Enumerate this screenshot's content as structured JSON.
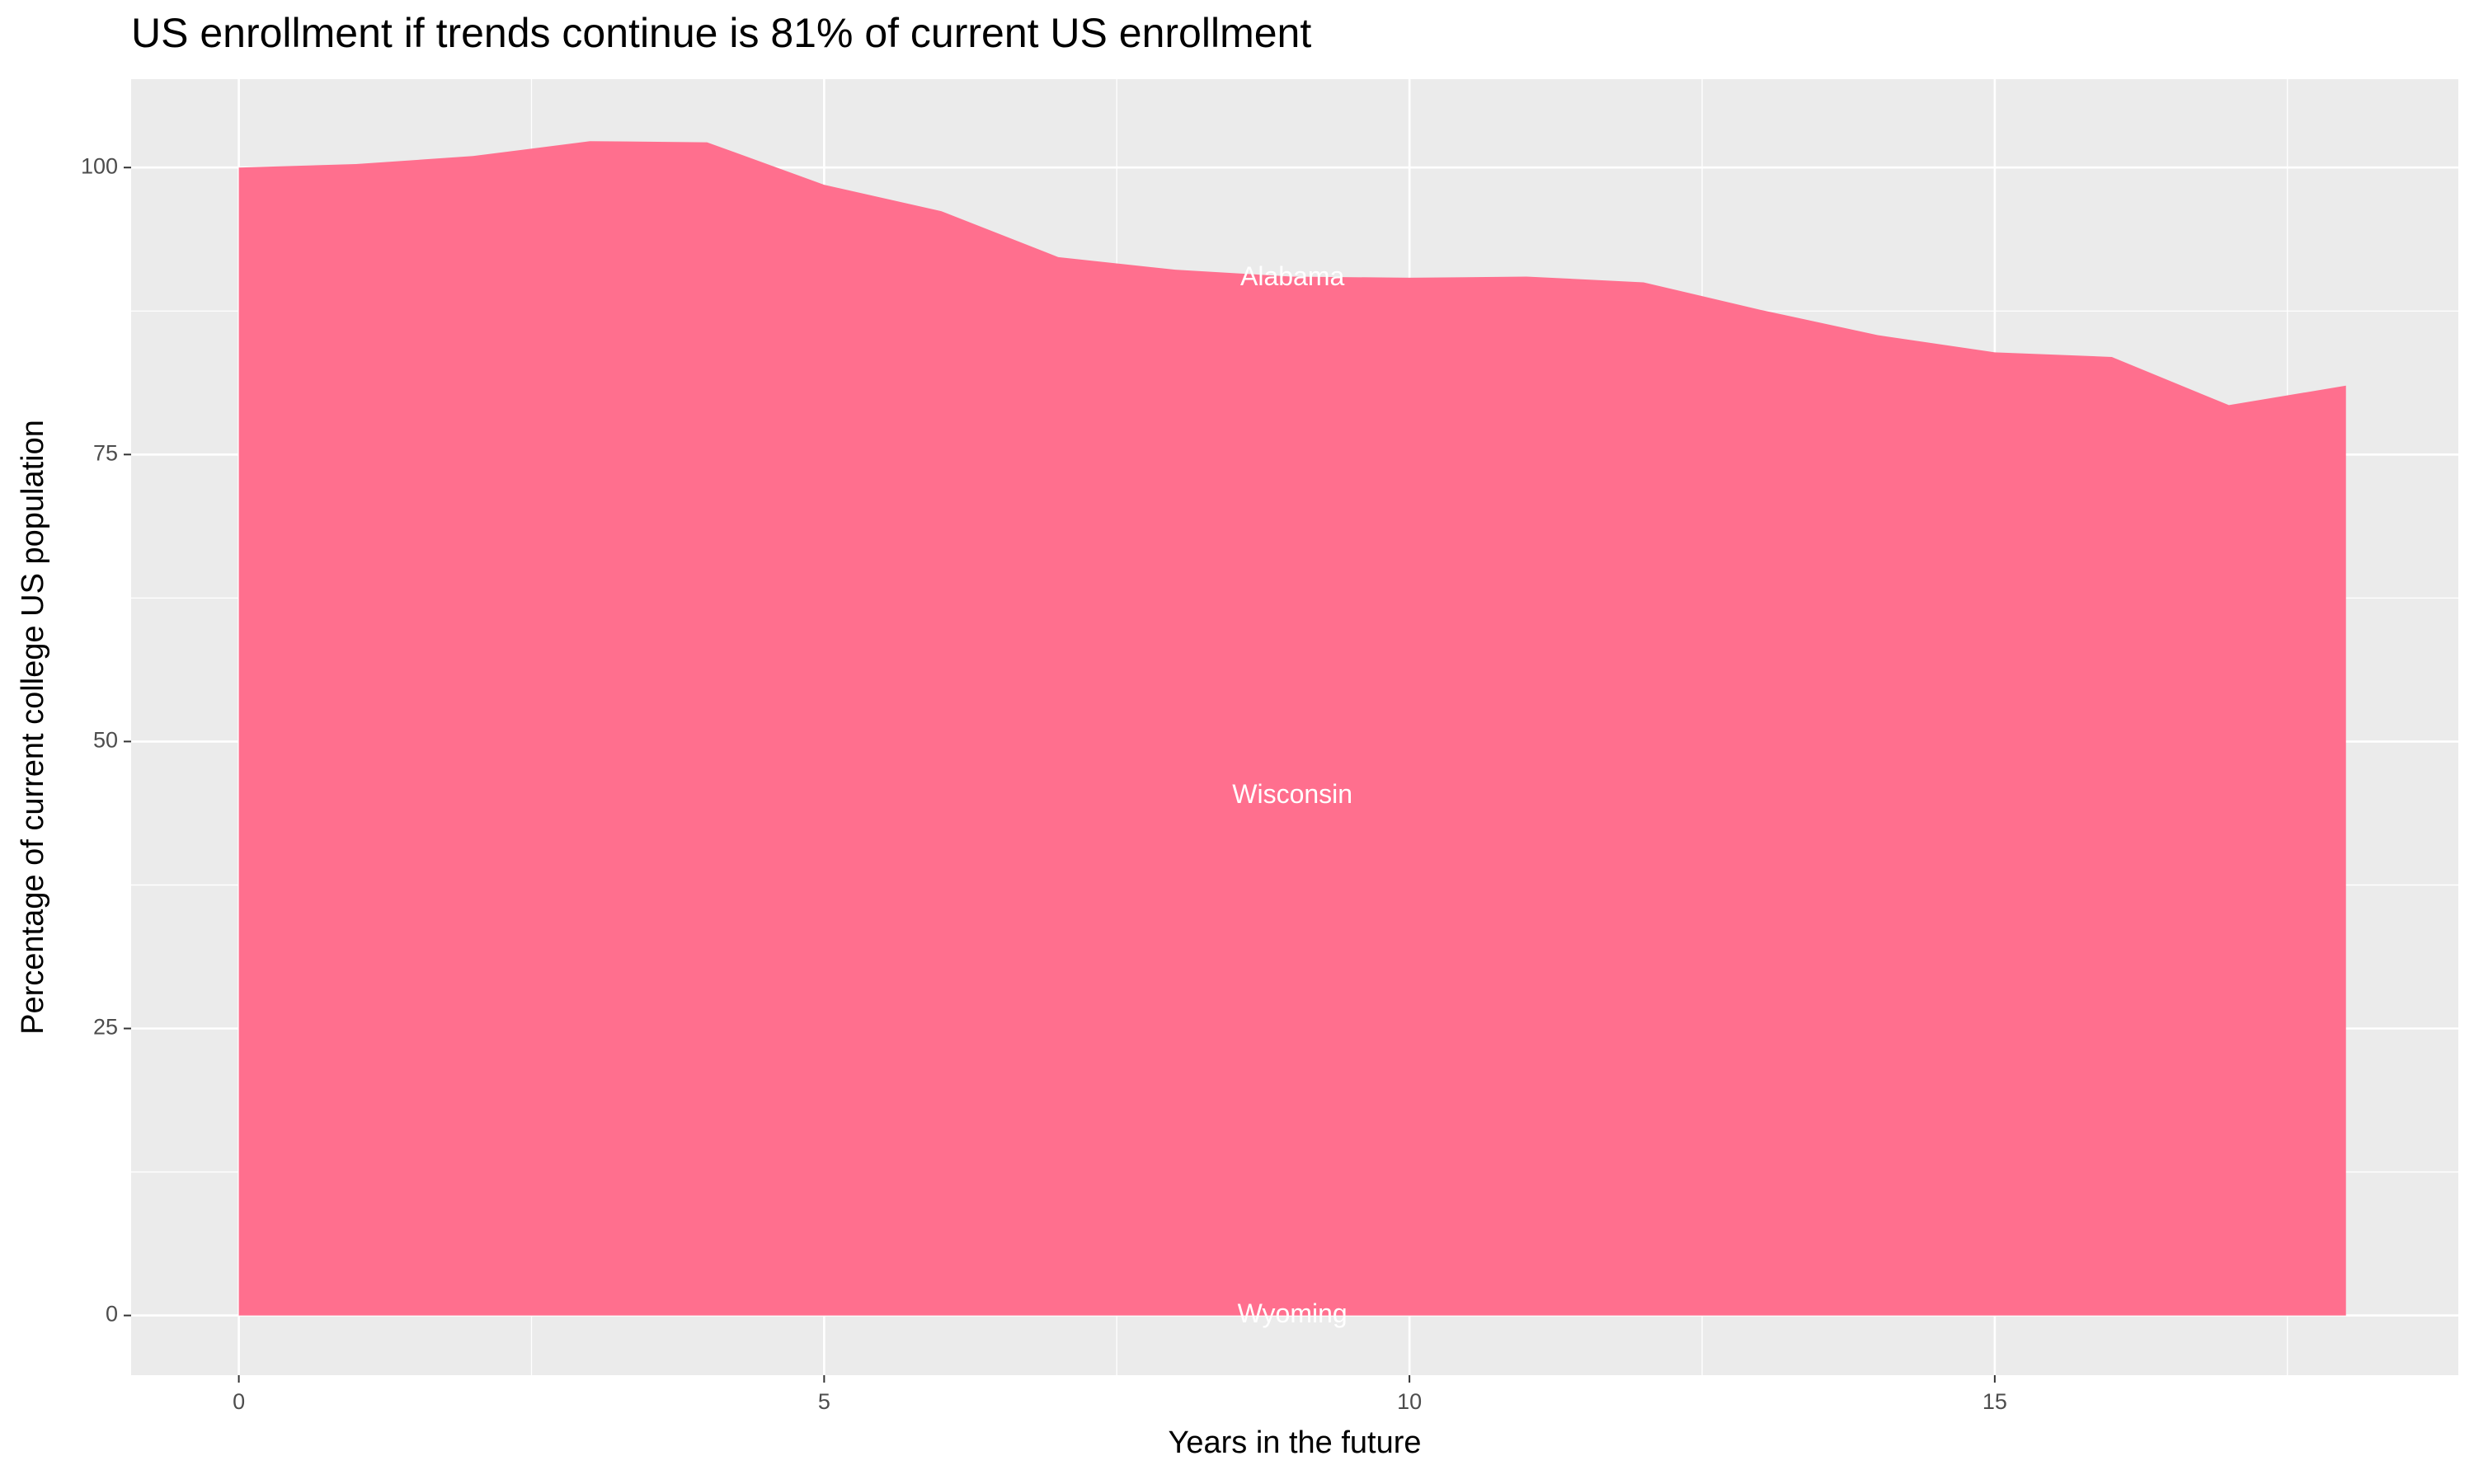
{
  "chart_data": {
    "type": "area",
    "title": "US enrollment if trends continue is 81% of current US enrollment",
    "x_label": "Years in the future",
    "y_label": "Percentage of current college US population",
    "x": [
      0,
      1,
      2,
      3,
      4,
      5,
      6,
      7,
      8,
      9,
      10,
      11,
      12,
      13,
      14,
      15,
      16,
      17,
      18
    ],
    "values": [
      100,
      100.3,
      101.0,
      102.3,
      102.2,
      98.5,
      96.2,
      92.2,
      91.1,
      90.5,
      90.4,
      90.5,
      90.0,
      87.6,
      85.4,
      83.9,
      83.5,
      79.3,
      81.0
    ],
    "color": "#ff6f8e",
    "annotations": [
      "Alabama",
      "Wisconsin",
      "Wyoming"
    ],
    "xlim": [
      -0.92,
      18.96
    ],
    "ylim": [
      -5.2,
      107.7
    ],
    "xticks": [
      0,
      5,
      10,
      15
    ],
    "yticks": [
      0,
      25,
      50,
      75,
      100
    ],
    "xminor": [
      2.5,
      7.5,
      12.5,
      17.5
    ],
    "yminor": [
      12.5,
      37.5,
      62.5,
      87.5
    ],
    "grid": true
  }
}
